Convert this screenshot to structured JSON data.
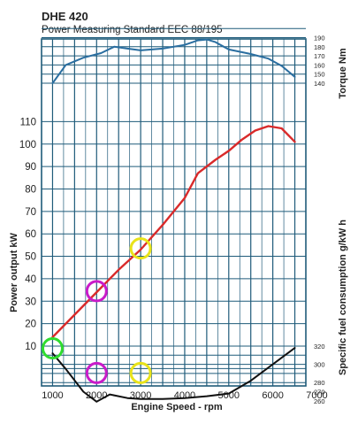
{
  "header": {
    "model": "DHE 420",
    "subtitle": "Power Measuring Standard EEC 88/195"
  },
  "colors": {
    "grid": "#1f5b7a",
    "torque": "#2a6ea0",
    "power": "#d92a2a",
    "sfc": "#111111",
    "circle_green": "#2fdc2f",
    "circle_magenta": "#c91bc9",
    "circle_yellow": "#e9e31a"
  },
  "chart_data": {
    "type": "line",
    "xlabel": "Engine Speed - rpm",
    "xlim": [
      750,
      6750
    ],
    "x_ticks": [
      "1000",
      "2000",
      "3000",
      "4000",
      "5000",
      "6000",
      "7000"
    ],
    "left_axis": {
      "label": "Power output kW",
      "ticks": [
        "10",
        "20",
        "30",
        "40",
        "50",
        "60",
        "70",
        "80",
        "90",
        "100",
        "110"
      ]
    },
    "right_axis_top": {
      "label": "Torque Nm",
      "ticks": [
        "140",
        "150",
        "160",
        "170",
        "180",
        "190"
      ]
    },
    "right_axis_bottom": {
      "label": "Specific fuel consumption g/kW h",
      "ticks": [
        "260",
        "270",
        "280",
        "300",
        "320"
      ]
    },
    "series": [
      {
        "key": "torque",
        "x": [
          1000,
          1300,
          1700,
          2100,
          2400,
          2700,
          3000,
          3500,
          4000,
          4300,
          4500,
          4700,
          5000,
          5500,
          5900,
          6200,
          6500
        ],
        "y": [
          140,
          160,
          168,
          173,
          180,
          178,
          176,
          178,
          182,
          187,
          188,
          185,
          177,
          172,
          167,
          159,
          147
        ]
      },
      {
        "key": "power",
        "x": [
          1000,
          1500,
          2000,
          2500,
          3000,
          3500,
          4000,
          4300,
          4700,
          5000,
          5300,
          5600,
          5900,
          6200,
          6400,
          6500
        ],
        "y": [
          14,
          24,
          34,
          44,
          53,
          64,
          76,
          87,
          93,
          97,
          102,
          106,
          108,
          107,
          103,
          101
        ]
      },
      {
        "key": "sfc",
        "x": [
          1000,
          1300,
          1700,
          2000,
          2300,
          2700,
          3000,
          3500,
          4000,
          4500,
          5000,
          5500,
          6000,
          6500
        ],
        "y": [
          312,
          295,
          270,
          259,
          267,
          263,
          262,
          262,
          263,
          265,
          268,
          282,
          300,
          318
        ]
      }
    ],
    "highlights": [
      {
        "x": 1000,
        "y": 9,
        "color": "circle_green"
      },
      {
        "x": 2000,
        "y": 34.5,
        "color": "circle_magenta"
      },
      {
        "x": 3000,
        "y": 53.5,
        "color": "circle_yellow"
      },
      {
        "x": 2000,
        "y": -2,
        "color": "circle_magenta"
      },
      {
        "x": 3000,
        "y": -2,
        "color": "circle_yellow"
      }
    ]
  }
}
